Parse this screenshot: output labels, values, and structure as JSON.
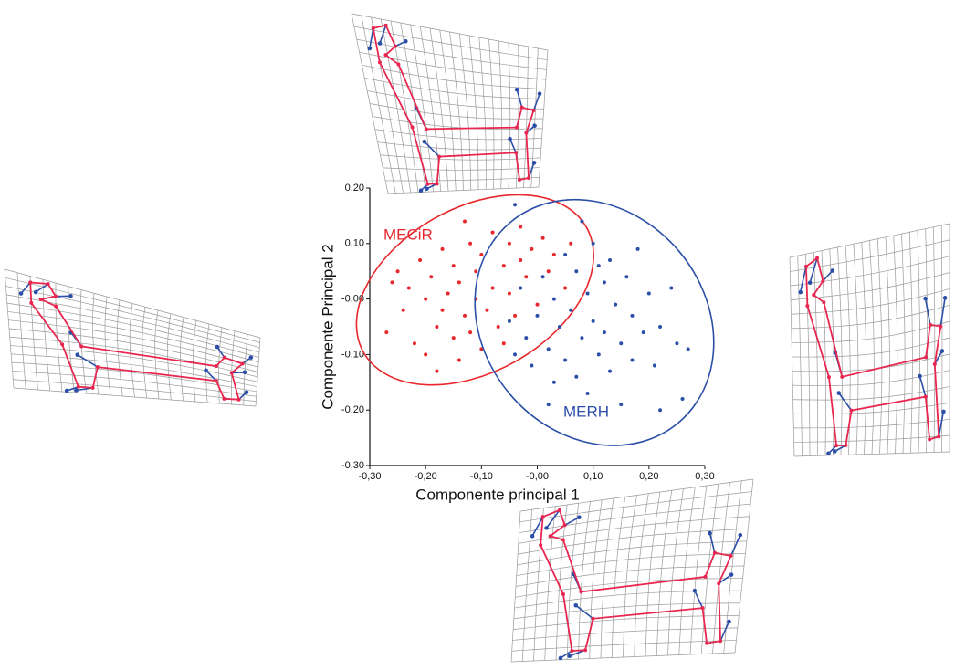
{
  "chart_data": {
    "type": "scatter",
    "xlabel": "Componente principal 1",
    "ylabel": "Componente Principal 2",
    "xlim": [
      -0.3,
      0.3
    ],
    "ylim": [
      -0.3,
      0.2
    ],
    "xticks": [
      {
        "value": -0.3,
        "label": "-0,30"
      },
      {
        "value": -0.2,
        "label": "-0,20"
      },
      {
        "value": -0.1,
        "label": "-0,10"
      },
      {
        "value": 0,
        "label": "-0,00"
      },
      {
        "value": 0.1,
        "label": "0,10"
      },
      {
        "value": 0.2,
        "label": "0,20"
      },
      {
        "value": 0.3,
        "label": "0,30"
      }
    ],
    "yticks": [
      {
        "value": -0.3,
        "label": "-0,30"
      },
      {
        "value": -0.2,
        "label": "-0,20"
      },
      {
        "value": -0.1,
        "label": "-0,10"
      },
      {
        "value": 0,
        "label": "-0,00"
      },
      {
        "value": 0.1,
        "label": "0,10"
      },
      {
        "value": 0.2,
        "label": "0,20"
      }
    ],
    "series": [
      {
        "name": "MECiR",
        "color": "#e8262b",
        "x": [
          -0.27,
          -0.25,
          -0.24,
          -0.23,
          -0.22,
          -0.21,
          -0.2,
          -0.2,
          -0.19,
          -0.18,
          -0.17,
          -0.17,
          -0.16,
          -0.15,
          -0.15,
          -0.14,
          -0.14,
          -0.13,
          -0.12,
          -0.12,
          -0.11,
          -0.11,
          -0.1,
          -0.1,
          -0.09,
          -0.08,
          -0.08,
          -0.07,
          -0.06,
          -0.06,
          -0.05,
          -0.05,
          -0.04,
          -0.03,
          -0.03,
          -0.02,
          -0.01,
          0.0,
          0.01,
          0.02,
          0.03,
          0.05,
          0.06,
          -0.13,
          -0.26,
          -0.18
        ],
        "values": [
          -0.06,
          0.05,
          -0.02,
          0.02,
          -0.08,
          0.07,
          -0.1,
          0.0,
          0.04,
          -0.05,
          0.09,
          -0.02,
          0.01,
          -0.07,
          0.06,
          -0.11,
          0.03,
          -0.03,
          0.1,
          -0.06,
          0.0,
          0.05,
          -0.09,
          0.08,
          -0.02,
          0.12,
          0.02,
          -0.05,
          0.06,
          -0.08,
          0.1,
          0.01,
          -0.03,
          0.07,
          0.13,
          0.04,
          0.09,
          -0.01,
          0.11,
          0.05,
          0.08,
          0.02,
          0.1,
          0.14,
          0.03,
          -0.13
        ]
      },
      {
        "name": "MERH",
        "color": "#2b4fa8",
        "x": [
          -0.05,
          -0.04,
          -0.03,
          -0.02,
          -0.01,
          0.0,
          0.01,
          0.02,
          0.03,
          0.03,
          0.04,
          0.05,
          0.05,
          0.06,
          0.07,
          0.07,
          0.08,
          0.09,
          0.09,
          0.1,
          0.1,
          0.11,
          0.12,
          0.12,
          0.13,
          0.13,
          0.14,
          0.15,
          0.15,
          0.16,
          0.17,
          0.17,
          0.18,
          0.19,
          0.2,
          0.21,
          0.22,
          0.22,
          0.24,
          0.25,
          0.26,
          0.27,
          0.08,
          -0.04,
          0.11,
          0.02
        ],
        "values": [
          -0.04,
          -0.1,
          0.02,
          -0.07,
          -0.12,
          -0.03,
          0.04,
          -0.09,
          -0.15,
          0.0,
          -0.05,
          0.08,
          -0.11,
          -0.02,
          0.05,
          -0.14,
          -0.07,
          0.01,
          -0.17,
          -0.04,
          0.1,
          -0.1,
          0.03,
          -0.06,
          -0.13,
          0.07,
          -0.01,
          -0.08,
          -0.19,
          0.04,
          -0.11,
          -0.03,
          0.09,
          -0.06,
          0.01,
          -0.12,
          -0.05,
          -0.2,
          0.02,
          -0.08,
          -0.18,
          -0.09,
          0.14,
          0.17,
          0.06,
          -0.19
        ]
      }
    ]
  }
}
